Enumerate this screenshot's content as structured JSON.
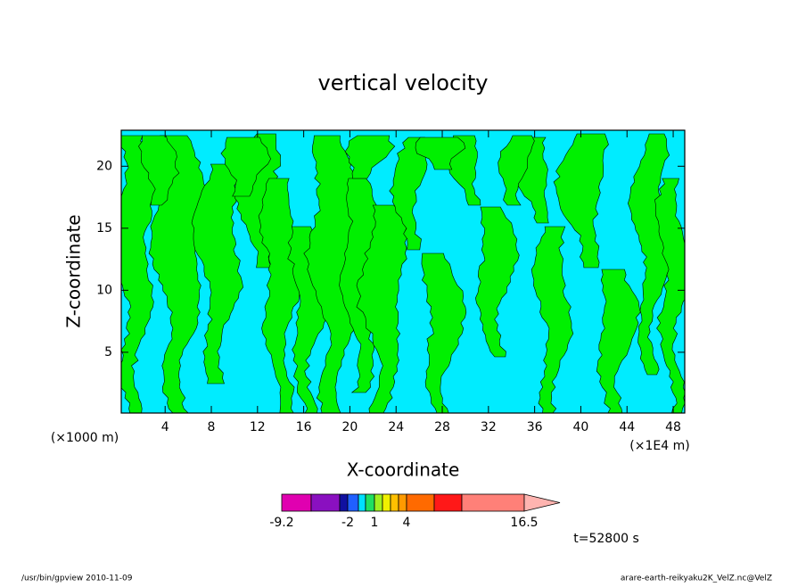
{
  "chart_data": {
    "type": "contour",
    "title": "vertical velocity",
    "x_label": "X-coordinate",
    "y_label": "Z-coordinate",
    "x_unit": "(×1E4 m)",
    "y_unit": "(×1000 m)",
    "xlim": [
      0.2,
      49
    ],
    "ylim": [
      0.1,
      22.9
    ],
    "xticks": [
      4,
      8,
      12,
      16,
      20,
      24,
      28,
      32,
      36,
      40,
      44,
      48
    ],
    "yticks": [
      5,
      10,
      15,
      20
    ],
    "field_colors": [
      "#00ecff",
      "#00f000"
    ],
    "colorbar": {
      "colors": [
        "#e000b0",
        "#8a10c0",
        "#1010a0",
        "#2060ff",
        "#00e0ff",
        "#20e060",
        "#a0f020",
        "#f0f000",
        "#ffc000",
        "#ff9a00",
        "#ff6a00",
        "#ff1818",
        "#ff8078",
        "#ffb4b0"
      ],
      "levels": [
        -9.2,
        null,
        null,
        -2,
        null,
        null,
        1,
        null,
        null,
        null,
        4,
        null,
        null,
        16.5
      ]
    },
    "time_label": "t=52800 s",
    "footer_left": "/usr/bin/gpview   2010-11-09",
    "footer_right": "arare-earth-reikyaku2K_VelZ.nc@VelZ"
  }
}
